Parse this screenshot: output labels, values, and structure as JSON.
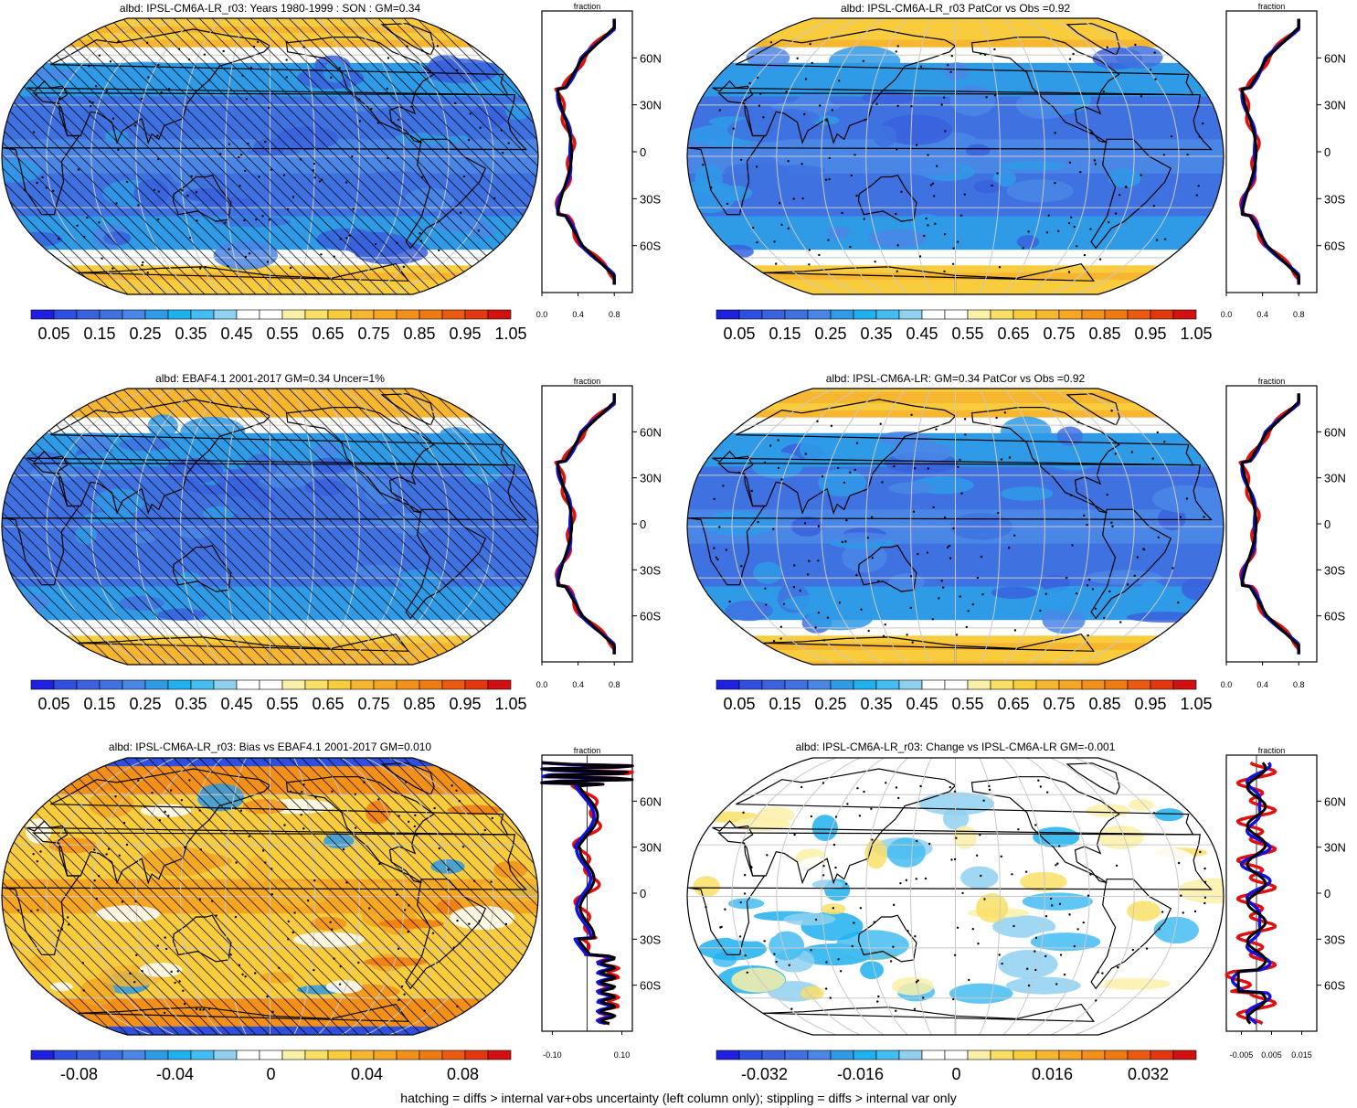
{
  "footnote": "hatching = diffs > internal var+obs uncertainty (left column only); stippling = diffs > internal var only",
  "colors": {
    "seq_palette": [
      "#1f1fe0",
      "#2e4fe0",
      "#3a62dd",
      "#3f72e0",
      "#4a86e6",
      "#2f9ae6",
      "#1fb0ee",
      "#44bdf2",
      "#8fd0f0",
      "#ffffff",
      "#ffffff",
      "#fbf0a8",
      "#f9df66",
      "#f8cc3c",
      "#f7b62f",
      "#f5a623",
      "#f39019",
      "#f07a12",
      "#ea5a10",
      "#e3370f",
      "#d21010"
    ],
    "div_palette": [
      "#1f1fe0",
      "#2e4fe0",
      "#3a62dd",
      "#3f72e0",
      "#4a86e6",
      "#2f9ae6",
      "#1fb0ee",
      "#44bdf2",
      "#8fd0f0",
      "#ffffff",
      "#ffffff",
      "#fbf0a8",
      "#f9df66",
      "#f8cc3c",
      "#f7b62f",
      "#f5a623",
      "#f39019",
      "#f07a12",
      "#ea5a10",
      "#e3370f",
      "#d21010"
    ],
    "series_obs": "#e01010",
    "series_model": "#1010e0",
    "series_ref": "#000000",
    "graticule": "#c8c8c8",
    "coast": "#000000"
  },
  "profile_common": {
    "ylabel_title": "fraction",
    "lat_ticks": [
      "60N",
      "30N",
      "0",
      "30S",
      "60S"
    ]
  },
  "panels": [
    {
      "id": "p1",
      "title": "albd: IPSL-CM6A-LR_r03: Years 1980-1999 : SON : GM=0.34",
      "field": "model",
      "hatch": true,
      "stipple": true,
      "palette": "seq",
      "colorbar_labels": [
        "0.05",
        "0.15",
        "0.25",
        "0.35",
        "0.45",
        "0.55",
        "0.65",
        "0.75",
        "0.85",
        "0.95",
        "1.05"
      ],
      "profile_xticks": [
        "0.0",
        "0.4",
        "0.8"
      ]
    },
    {
      "id": "p2",
      "title": "albd: IPSL-CM6A-LR_r03 PatCor vs Obs =0.92",
      "field": "model",
      "hatch": false,
      "stipple": true,
      "palette": "seq",
      "colorbar_labels": [
        "0.05",
        "0.15",
        "0.25",
        "0.35",
        "0.45",
        "0.55",
        "0.65",
        "0.75",
        "0.85",
        "0.95",
        "1.05"
      ],
      "profile_xticks": [
        "0.0",
        "0.4",
        "0.8"
      ]
    },
    {
      "id": "p3",
      "title": "albd: EBAF4.1 2001-2017 GM=0.34 Uncer=1%",
      "field": "obs",
      "hatch": true,
      "stipple": false,
      "palette": "seq",
      "colorbar_labels": [
        "0.05",
        "0.15",
        "0.25",
        "0.35",
        "0.45",
        "0.55",
        "0.65",
        "0.75",
        "0.85",
        "0.95",
        "1.05"
      ],
      "profile_xticks": [
        "0.0",
        "0.4",
        "0.8"
      ]
    },
    {
      "id": "p4",
      "title": "albd: IPSL-CM6A-LR: GM=0.34 PatCor vs Obs =0.92",
      "field": "model",
      "hatch": false,
      "stipple": true,
      "palette": "seq",
      "colorbar_labels": [
        "0.05",
        "0.15",
        "0.25",
        "0.35",
        "0.45",
        "0.55",
        "0.65",
        "0.75",
        "0.85",
        "0.95",
        "1.05"
      ],
      "profile_xticks": [
        "0.0",
        "0.4",
        "0.8"
      ]
    },
    {
      "id": "p5",
      "title": "albd: IPSL-CM6A-LR_r03: Bias vs EBAF4.1 2001-2017  GM=0.010",
      "field": "bias",
      "hatch": true,
      "stipple": true,
      "palette": "div",
      "colorbar_labels": [
        "-0.08",
        "-0.04",
        "0",
        "0.04",
        "0.08"
      ],
      "profile_xticks": [
        "-0.10",
        "0.10"
      ]
    },
    {
      "id": "p6",
      "title": "albd: IPSL-CM6A-LR_r03: Change vs IPSL-CM6A-LR GM=-0.001",
      "field": "change",
      "hatch": false,
      "stipple": true,
      "palette": "div",
      "colorbar_labels": [
        "-0.032",
        "-0.016",
        "0",
        "0.016",
        "0.032"
      ],
      "profile_xticks": [
        "-0.005",
        "0.005",
        "0.015"
      ]
    }
  ]
}
